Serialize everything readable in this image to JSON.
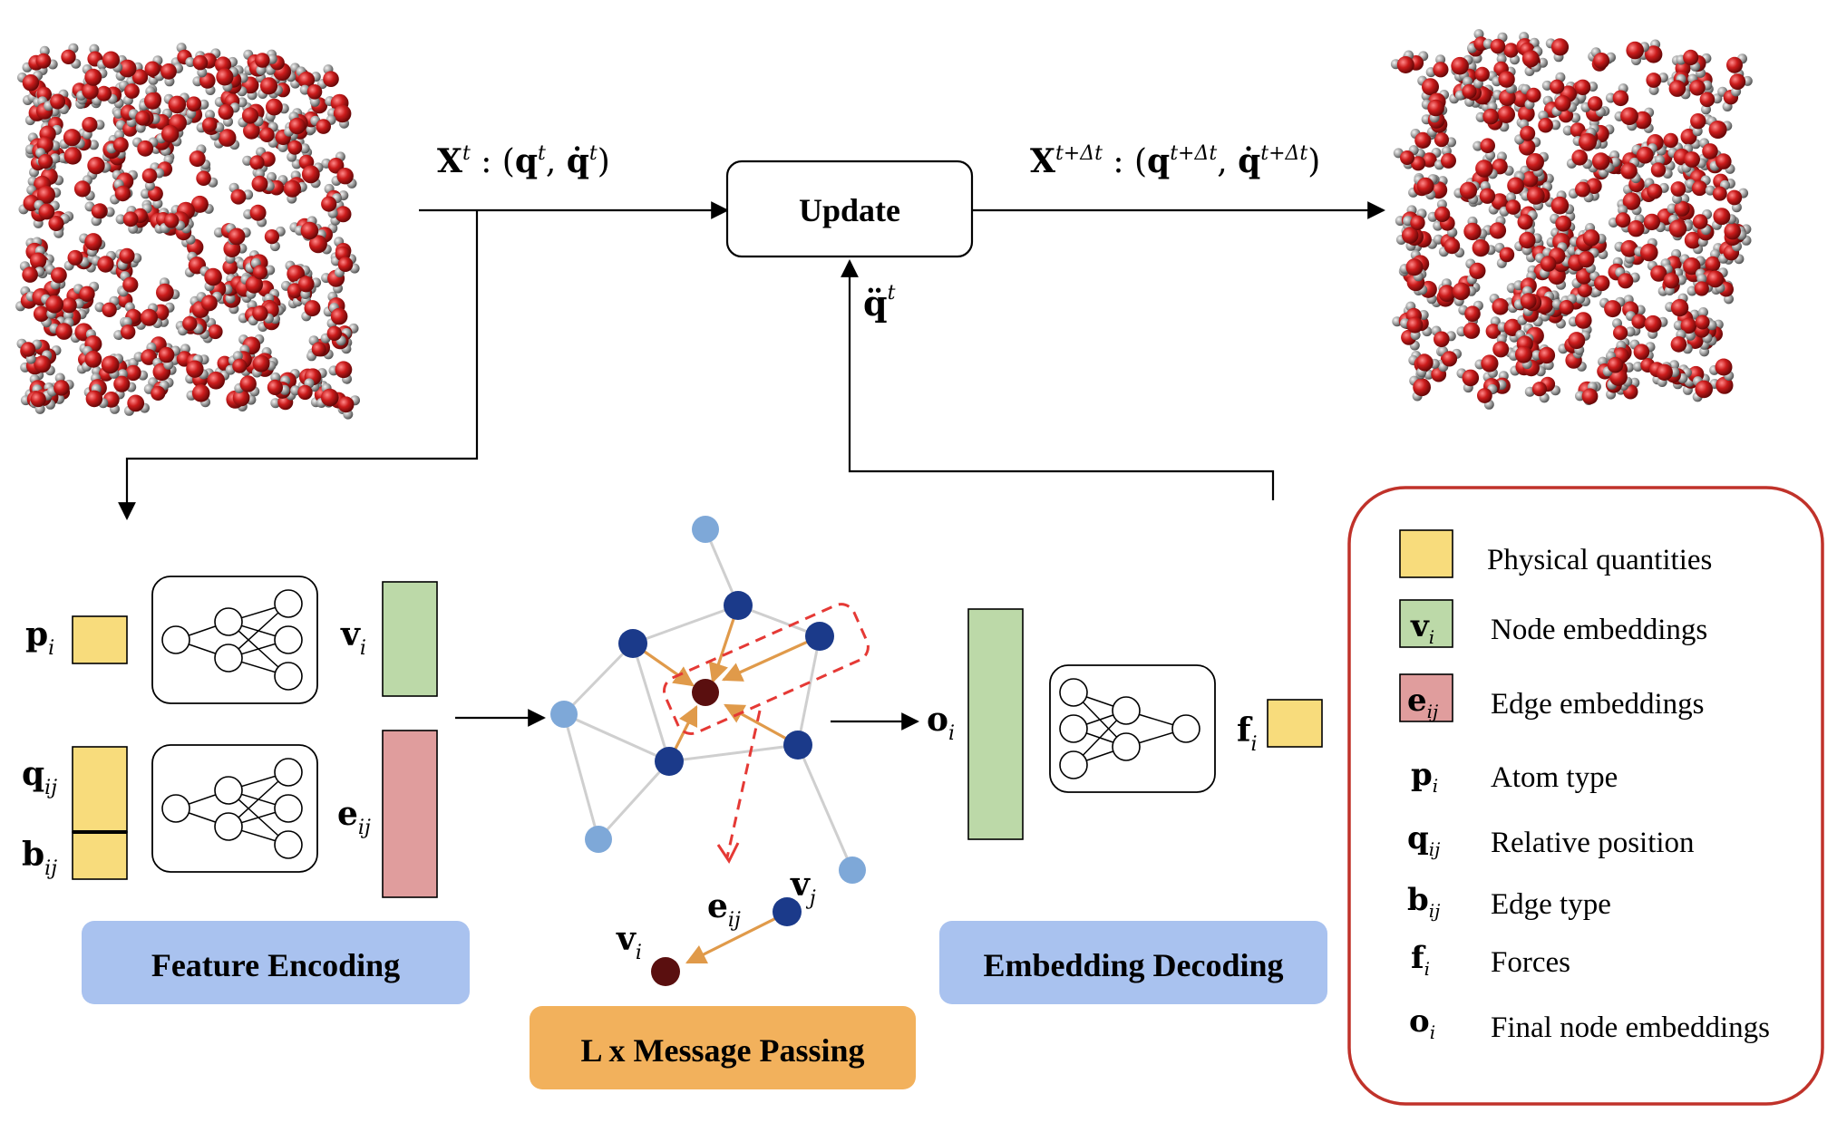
{
  "update": {
    "label": "Update"
  },
  "state_in": {
    "var": "X",
    "sup": "t",
    "q": "q",
    "qd": "q̇",
    "qsup": "t"
  },
  "state_out": {
    "var": "X",
    "sup": "t+Δt",
    "q": "q",
    "qd": "q̇",
    "qsup": "t+Δt"
  },
  "accel": {
    "var": "q̈",
    "sup": "t"
  },
  "encoding": {
    "title": "Feature Encoding",
    "p": {
      "b": "p",
      "s": "i"
    },
    "q": {
      "b": "q",
      "s": "ij"
    },
    "bb": {
      "b": "b",
      "s": "ij"
    },
    "v": {
      "b": "v",
      "s": "i"
    },
    "e": {
      "b": "e",
      "s": "ij"
    }
  },
  "message": {
    "title": "L x Message Passing",
    "vi": {
      "b": "v",
      "s": "i"
    },
    "vj": {
      "b": "v",
      "s": "j"
    },
    "eij": {
      "b": "e",
      "s": "ij"
    }
  },
  "decoding": {
    "title": "Embedding Decoding",
    "o": {
      "b": "o",
      "s": "i"
    },
    "f": {
      "b": "f",
      "s": "i"
    }
  },
  "legend": {
    "items": [
      {
        "sym": "",
        "sub": "",
        "text": "Physical quantities"
      },
      {
        "sym": "v",
        "sub": "i",
        "text": "Node embeddings"
      },
      {
        "sym": "e",
        "sub": "ij",
        "text": "Edge embeddings"
      },
      {
        "sym": "p",
        "sub": "i",
        "text": "Atom type"
      },
      {
        "sym": "q",
        "sub": "ij",
        "text": "Relative position"
      },
      {
        "sym": "b",
        "sub": "ij",
        "text": "Edge type"
      },
      {
        "sym": "f",
        "sub": "i",
        "text": "Forces"
      },
      {
        "sym": "o",
        "sub": "i",
        "text": "Final node embeddings"
      }
    ]
  },
  "colors": {
    "physical": "#f8dc7c",
    "node": "#bcd9a8",
    "edge": "#e09d9d",
    "label_blue": "#a9c2ef",
    "label_orange": "#f2b15c",
    "legend_border": "#c0322a",
    "atom_red": "#c01818",
    "atom_gray": "#9a9a9a"
  }
}
